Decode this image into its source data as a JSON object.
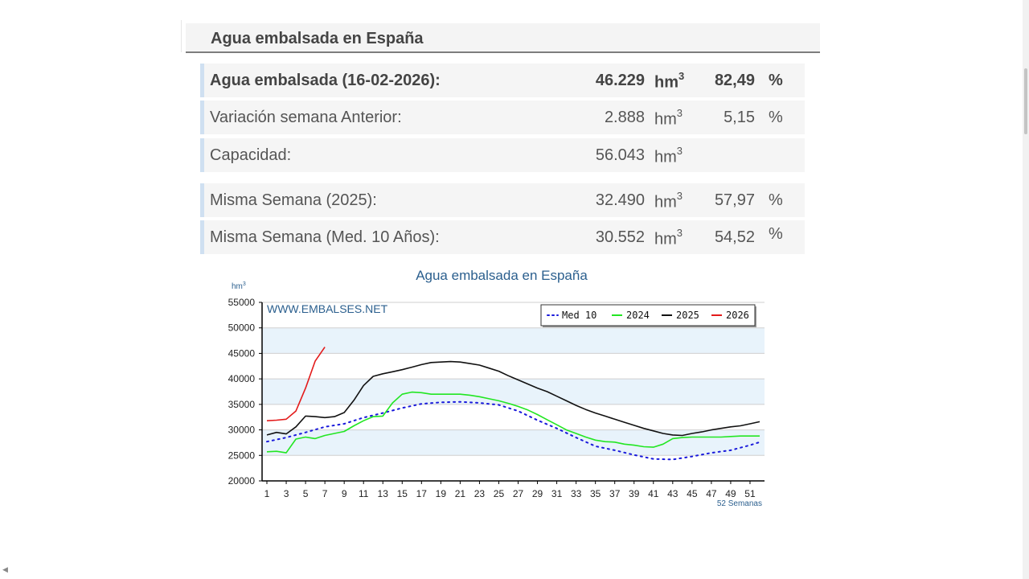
{
  "header": {
    "title": "Agua embalsada en España"
  },
  "stats": [
    {
      "label": "Agua embalsada (16-02-2026):",
      "value": "46.229",
      "unit": "hm",
      "unit_sup": "3",
      "percent": "82,49",
      "percent_sign": "%"
    },
    {
      "label": "Variación semana Anterior:",
      "value": "2.888",
      "unit": "hm",
      "unit_sup": "3",
      "percent": "5,15",
      "percent_sign": "%"
    },
    {
      "label": "Capacidad:",
      "value": "56.043",
      "unit": "hm",
      "unit_sup": "3",
      "percent": "",
      "percent_sign": ""
    },
    {
      "label": "Misma Semana (2025):",
      "value": "32.490",
      "unit": "hm",
      "unit_sup": "3",
      "percent": "57,97",
      "percent_sign": "%"
    },
    {
      "label": "Misma Semana (Med. 10 Años):",
      "value": "30.552",
      "unit": "hm",
      "unit_sup": "3",
      "percent": "54,52",
      "percent_sign": "%"
    }
  ],
  "chart_data": {
    "type": "line",
    "title": "Agua embalsada en España",
    "ylabel": "hm",
    "ylabel_sup": "3",
    "xlabel": "52 Semanas",
    "watermark": "WWW.EMBALSES.NET",
    "ylim": [
      20000,
      55000
    ],
    "xlim": [
      0.5,
      52.5
    ],
    "yticks": [
      20000,
      25000,
      30000,
      35000,
      40000,
      45000,
      50000,
      55000
    ],
    "xticks": [
      1,
      3,
      5,
      7,
      9,
      11,
      13,
      15,
      17,
      19,
      21,
      23,
      25,
      27,
      29,
      31,
      33,
      35,
      37,
      39,
      41,
      43,
      45,
      47,
      49,
      51
    ],
    "legend_position": "top-right",
    "grid": true,
    "series": [
      {
        "name": "Med 10",
        "color": "#1a1adb",
        "style": "dotted",
        "x": [
          1,
          3,
          5,
          7,
          9,
          11,
          13,
          15,
          17,
          19,
          21,
          23,
          25,
          27,
          29,
          31,
          33,
          35,
          37,
          39,
          41,
          43,
          45,
          47,
          49,
          51,
          52
        ],
        "y": [
          27700,
          28500,
          29500,
          30600,
          31200,
          32400,
          33300,
          34300,
          35100,
          35400,
          35500,
          35300,
          34900,
          33700,
          31900,
          30300,
          28500,
          26800,
          26000,
          25100,
          24300,
          24200,
          24800,
          25500,
          26000,
          27000,
          27600
        ]
      },
      {
        "name": "2024",
        "color": "#22e622",
        "style": "solid",
        "x": [
          1,
          2,
          3,
          4,
          5,
          6,
          7,
          8,
          9,
          10,
          11,
          12,
          13,
          14,
          15,
          16,
          17,
          18,
          19,
          20,
          21,
          22,
          23,
          24,
          25,
          26,
          27,
          28,
          29,
          30,
          31,
          32,
          33,
          34,
          35,
          36,
          37,
          38,
          39,
          40,
          41,
          42,
          43,
          44,
          45,
          46,
          47,
          48,
          49,
          50,
          51,
          52
        ],
        "y": [
          25700,
          25800,
          25500,
          28200,
          28600,
          28300,
          28900,
          29300,
          29700,
          30800,
          31800,
          32600,
          32700,
          35300,
          37000,
          37400,
          37300,
          37000,
          37000,
          37000,
          37000,
          36800,
          36500,
          36100,
          35700,
          35200,
          34600,
          33900,
          33000,
          32000,
          31000,
          30000,
          29300,
          28600,
          28000,
          27700,
          27600,
          27200,
          27000,
          26700,
          26600,
          27200,
          28300,
          28500,
          28600,
          28600,
          28600,
          28600,
          28700,
          28800,
          28800,
          28800
        ]
      },
      {
        "name": "2025",
        "color": "#111111",
        "style": "solid",
        "x": [
          1,
          2,
          3,
          4,
          5,
          6,
          7,
          8,
          9,
          10,
          11,
          12,
          13,
          14,
          15,
          16,
          17,
          18,
          19,
          20,
          21,
          22,
          23,
          24,
          25,
          26,
          27,
          28,
          29,
          30,
          31,
          32,
          33,
          34,
          35,
          36,
          37,
          38,
          39,
          40,
          41,
          42,
          43,
          44,
          45,
          46,
          47,
          48,
          49,
          50,
          51,
          52
        ],
        "y": [
          29000,
          29500,
          29200,
          30600,
          32700,
          32600,
          32400,
          32600,
          33400,
          35800,
          38700,
          40500,
          41000,
          41400,
          41800,
          42300,
          42800,
          43200,
          43300,
          43400,
          43300,
          43000,
          42700,
          42100,
          41500,
          40600,
          39800,
          39000,
          38200,
          37500,
          36600,
          35700,
          34800,
          34000,
          33300,
          32700,
          32100,
          31500,
          30900,
          30300,
          29800,
          29300,
          29000,
          28900,
          29300,
          29600,
          30000,
          30300,
          30600,
          30800,
          31200,
          31600
        ]
      },
      {
        "name": "2026",
        "color": "#e31a1a",
        "style": "solid",
        "x": [
          1,
          2,
          3,
          4,
          5,
          6,
          7
        ],
        "y": [
          31800,
          31900,
          32100,
          33700,
          38200,
          43500,
          46229
        ]
      }
    ]
  }
}
